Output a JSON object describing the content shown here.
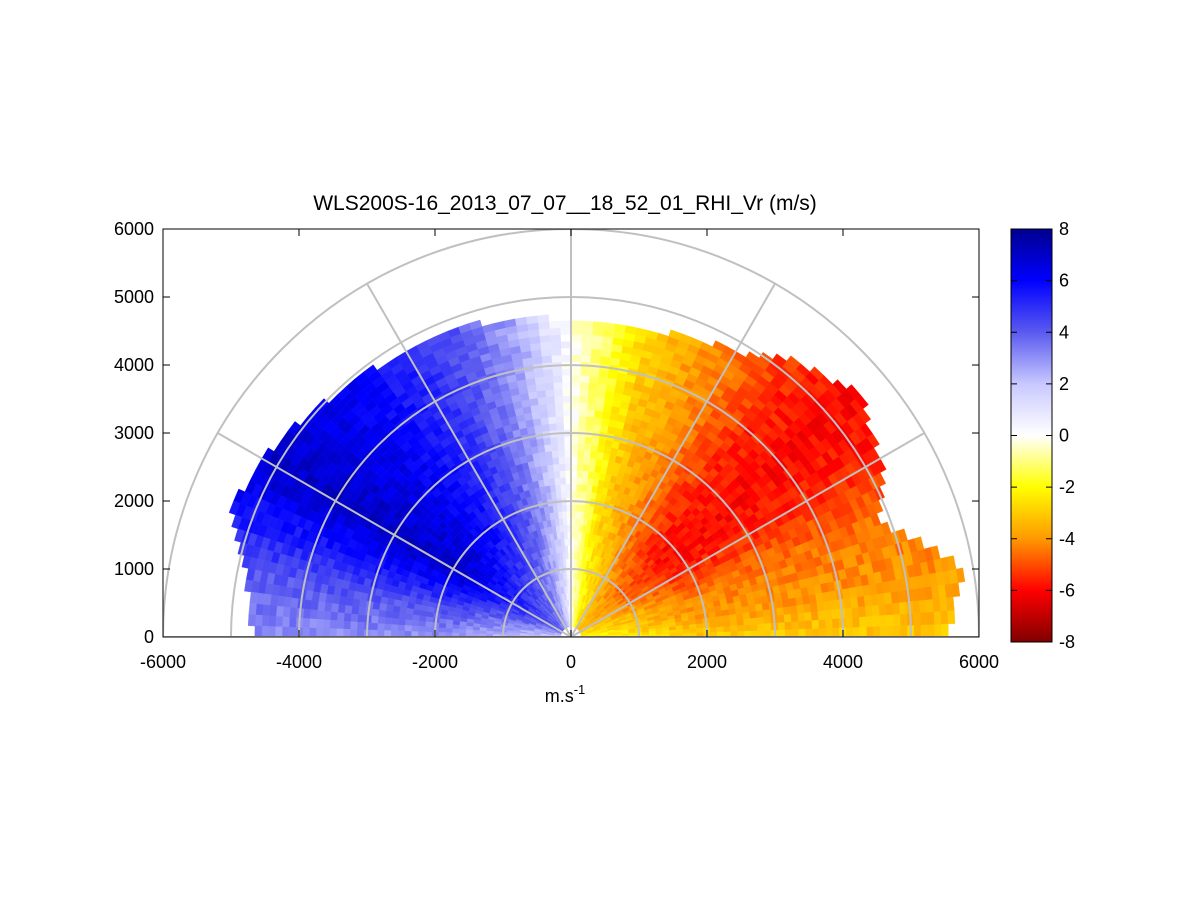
{
  "chart_data": {
    "type": "heatmap",
    "subtype": "polar-rhi-sector",
    "title": "WLS200S-16_2013_07_07__18_52_01_RHI_Vr (m/s)",
    "xlabel": "m.s",
    "xlabel_superscript": "-1",
    "ylabel": "",
    "xlim": [
      -6000,
      6000
    ],
    "ylim": [
      0,
      6000
    ],
    "x_ticks": [
      "-6000",
      "-4000",
      "-2000",
      "0",
      "2000",
      "4000",
      "6000"
    ],
    "y_ticks": [
      "0",
      "1000",
      "2000",
      "3000",
      "4000",
      "5000",
      "6000"
    ],
    "colorbar": {
      "label": "",
      "range": [
        -8,
        8
      ],
      "ticks": [
        "8",
        "6",
        "4",
        "2",
        "0",
        "-2",
        "-4",
        "-6",
        "-8"
      ],
      "colors": [
        "#00008f",
        "#0000ff",
        "#5a5af0",
        "#c8c8ff",
        "#ffffff",
        "#ffff00",
        "#ff9900",
        "#ff0000",
        "#800000"
      ]
    },
    "polar_grid": {
      "range_rings_m": [
        1000,
        2000,
        3000,
        4000,
        5000,
        6000
      ],
      "azimuth_lines_deg": [
        0,
        30,
        60,
        90,
        120,
        150,
        180
      ],
      "color": "#c0c0c0"
    },
    "grid": true,
    "radial_velocity_profile": {
      "description_units": "elevation angle (deg, 0 = +x axis) vs radial velocity (m/s)",
      "elevation_deg": [
        0,
        10,
        20,
        30,
        40,
        50,
        60,
        70,
        75,
        80,
        85,
        88,
        90,
        92,
        95,
        100,
        110,
        120,
        130,
        140,
        150,
        160,
        170,
        180
      ],
      "vr_ms": [
        -3.0,
        -4.0,
        -4.5,
        -5.5,
        -6.0,
        -5.5,
        -4.5,
        -3.5,
        -3.0,
        -2.0,
        -1.0,
        -0.5,
        0.0,
        0.5,
        1.2,
        2.5,
        4.0,
        5.2,
        6.0,
        6.5,
        7.0,
        5.5,
        4.0,
        3.0
      ],
      "max_range_m": [
        5500,
        5800,
        4800,
        5200,
        5500,
        5200,
        4800,
        4700,
        4600,
        4600,
        4600,
        4600,
        4600,
        4600,
        4700,
        4700,
        4800,
        4800,
        4900,
        5000,
        5200,
        5300,
        4800,
        4600
      ]
    }
  }
}
